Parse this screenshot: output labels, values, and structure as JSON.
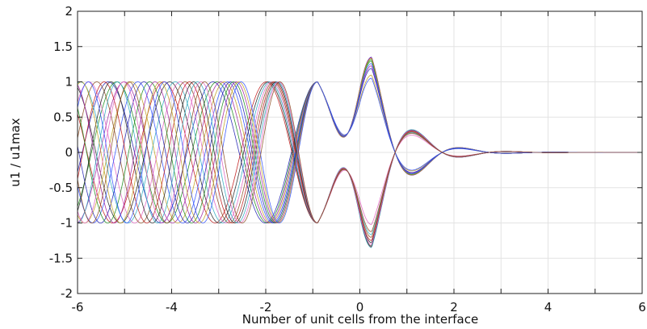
{
  "chart_data": {
    "type": "line",
    "title": "",
    "xlabel": "Number of unit cells from the interface",
    "ylabel": "u1 / u1max",
    "xlim": [
      -6,
      6
    ],
    "ylim": [
      -2,
      2
    ],
    "grid": true,
    "x_ticks": [
      -6,
      -5,
      -4,
      -3,
      -2,
      -1,
      0,
      1,
      2,
      3,
      4,
      5,
      6
    ],
    "x_tick_labels": [
      "-6",
      "",
      "-4",
      "",
      "-2",
      "",
      "0",
      "",
      "2",
      "",
      "4",
      "",
      "6"
    ],
    "y_ticks": [
      -2,
      -1.5,
      -1,
      -0.5,
      0,
      0.5,
      1,
      1.5,
      2
    ],
    "y_tick_labels": [
      "-2",
      "-1.5",
      "-1",
      "-0.5",
      "0",
      "0.5",
      "1",
      "1.5",
      "2"
    ],
    "series_colors": [
      "#1f1fb4",
      "#c01818",
      "#1a8a1a",
      "#222222",
      "#a020a0",
      "#2aa8c0",
      "#c0a020",
      "#e060c0",
      "#3050ff",
      "#8a4a20"
    ],
    "family": {
      "description_values": {
        "left_region_x": [
          -6,
          -1
        ],
        "left_region_amplitude": 1.0,
        "interface_peak_x": 0.25,
        "interface_peak_range": [
          1.0,
          1.35
        ],
        "decay_points_x": [
          1.2,
          2.2,
          3.2,
          4.0
        ],
        "decay_amplitudes": [
          0.25,
          0.05,
          0.015,
          0.0
        ],
        "tail_value": 0
      },
      "curve_count": 20
    }
  }
}
